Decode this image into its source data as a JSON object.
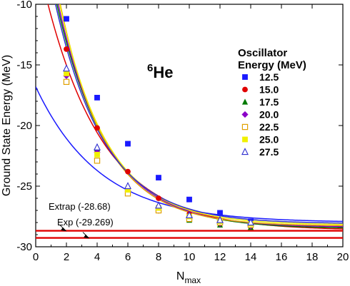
{
  "chart_data": {
    "type": "scatter",
    "nucleus_mass": "6",
    "nucleus_symbol": "He",
    "xlabel_main": "N",
    "xlabel_sub": "max",
    "ylabel": "Ground State Energy (MeV)",
    "xlim": [
      0,
      20
    ],
    "ylim": [
      -30,
      -10
    ],
    "xticks": [
      "0",
      "2",
      "4",
      "6",
      "8",
      "10",
      "12",
      "14",
      "16",
      "18",
      "20"
    ],
    "yticks": [
      "-10",
      "-15",
      "-20",
      "-25",
      "-30"
    ],
    "legend_title_line1": "Oscillator",
    "legend_title_line2": "Energy (MeV)",
    "legend_placement": "top-right",
    "series": [
      {
        "name": "12.5",
        "color": "#1a1aff",
        "marker": "square-filled",
        "x": [
          2,
          4,
          6,
          8,
          10,
          12,
          14
        ],
        "y": [
          -11.2,
          -17.7,
          -21.5,
          -24.3,
          -26.1,
          -27.2,
          -27.9
        ],
        "fit": {
          "E_inf": -28.0,
          "A": 11.2,
          "k": 0.24
        }
      },
      {
        "name": "15.0",
        "color": "#e00000",
        "marker": "circle-filled",
        "x": [
          2,
          4,
          6,
          8,
          10,
          12,
          14
        ],
        "y": [
          -13.7,
          -20.2,
          -23.8,
          -26.0,
          -27.3,
          -28.0,
          -28.3
        ],
        "fit": {
          "E_inf": -28.65,
          "A": 23.0,
          "k": 0.262
        }
      },
      {
        "name": "17.5",
        "color": "#007a00",
        "marker": "triangle-filled",
        "x": [
          2,
          4,
          6,
          8,
          10,
          12,
          14
        ],
        "y": [
          -15.5,
          -21.9,
          -25.3,
          -27.0,
          -27.8,
          -28.2,
          -28.4
        ],
        "fit": {
          "E_inf": -28.5,
          "A": 28.0,
          "k": 0.3
        }
      },
      {
        "name": "20.0",
        "color": "#8a00c8",
        "marker": "diamond-filled",
        "x": [
          2,
          4,
          6,
          8,
          10,
          12,
          14
        ],
        "y": [
          -15.9,
          -22.2,
          -25.4,
          -27.0,
          -27.7,
          -28.1,
          -28.3
        ],
        "fit": {
          "E_inf": -28.4,
          "A": 29.0,
          "k": 0.31
        }
      },
      {
        "name": "22.5",
        "color": "#e0a000",
        "marker": "square-open",
        "x": [
          2,
          4,
          6,
          8,
          10,
          12,
          14
        ],
        "y": [
          -16.4,
          -22.9,
          -25.6,
          -27.0,
          -27.7,
          -28.0,
          -28.2
        ],
        "fit": {
          "E_inf": -28.3,
          "A": 31.0,
          "k": 0.33
        }
      },
      {
        "name": "25.0",
        "color": "#f0f000",
        "marker": "square-filled",
        "x": [
          2,
          4,
          6,
          8,
          10,
          12,
          14
        ],
        "y": [
          -15.7,
          -22.4,
          -25.3,
          -26.8,
          -27.5,
          -27.9,
          -28.1
        ],
        "fit": {
          "E_inf": -28.2,
          "A": 30.0,
          "k": 0.32
        }
      },
      {
        "name": "27.5",
        "color": "#3030d0",
        "marker": "triangle-open",
        "x": [
          2,
          4,
          6,
          8,
          10,
          12,
          14
        ],
        "y": [
          -15.3,
          -21.8,
          -25.0,
          -26.6,
          -27.4,
          -27.8,
          -28.0
        ],
        "fit": {
          "E_inf": -28.1,
          "A": 27.0,
          "k": 0.31
        }
      }
    ],
    "reference_lines": [
      {
        "label": "Extrap (-28.68)",
        "value": -28.68,
        "color": "#e00000"
      },
      {
        "label": "Exp (-29.269)",
        "value": -29.269,
        "color": "#e00000"
      }
    ]
  }
}
